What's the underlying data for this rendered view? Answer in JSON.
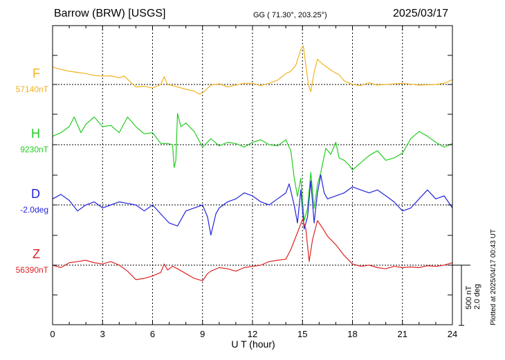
{
  "header": {
    "station": "Barrow (BRW)  [USGS]",
    "coords": "GG ( 71.30°, 203.25°)",
    "date": "2025/03/17"
  },
  "footer": {
    "plotted_note": "Plotted at 2025/04/17 00:43 UT",
    "scale_nt": "500 nT",
    "scale_deg": "2.0 deg"
  },
  "chart_data": {
    "type": "line",
    "title": "Barrow (BRW)  [USGS]",
    "xlabel": "U T (hour)",
    "ylabel": "",
    "xlim": [
      0,
      24
    ],
    "x_ticks": [
      "0",
      "3",
      "6",
      "9",
      "12",
      "15",
      "18",
      "21",
      "24"
    ],
    "grid": true,
    "scale_bar": {
      "nT": 500,
      "deg": 2.0
    },
    "series": [
      {
        "name": "F",
        "baseline_label": "57140nT",
        "color": "#f2b21c",
        "baseline": 57140,
        "unit": "nT",
        "points": [
          [
            0,
            57285
          ],
          [
            0.5,
            57265
          ],
          [
            1,
            57250
          ],
          [
            1.5,
            57240
          ],
          [
            2,
            57230
          ],
          [
            2.5,
            57215
          ],
          [
            3,
            57210
          ],
          [
            3.5,
            57212
          ],
          [
            4,
            57195
          ],
          [
            4.3,
            57210
          ],
          [
            4.6,
            57170
          ],
          [
            5,
            57120
          ],
          [
            5.5,
            57125
          ],
          [
            6,
            57110
          ],
          [
            6.5,
            57140
          ],
          [
            6.7,
            57205
          ],
          [
            6.9,
            57140
          ],
          [
            7.2,
            57130
          ],
          [
            7.5,
            57120
          ],
          [
            8,
            57100
          ],
          [
            8.5,
            57085
          ],
          [
            8.8,
            57060
          ],
          [
            9,
            57070
          ],
          [
            9.5,
            57135
          ],
          [
            10,
            57145
          ],
          [
            10.5,
            57120
          ],
          [
            11,
            57135
          ],
          [
            11.5,
            57150
          ],
          [
            12,
            57150
          ],
          [
            12.5,
            57130
          ],
          [
            13,
            57150
          ],
          [
            13.5,
            57175
          ],
          [
            14,
            57230
          ],
          [
            14.3,
            57250
          ],
          [
            14.6,
            57300
          ],
          [
            14.9,
            57430
          ],
          [
            15.05,
            57460
          ],
          [
            15.2,
            57300
          ],
          [
            15.35,
            57140
          ],
          [
            15.5,
            57080
          ],
          [
            15.7,
            57240
          ],
          [
            15.9,
            57350
          ],
          [
            16.2,
            57310
          ],
          [
            16.5,
            57280
          ],
          [
            16.8,
            57250
          ],
          [
            17.2,
            57220
          ],
          [
            17.5,
            57170
          ],
          [
            18,
            57140
          ],
          [
            18.5,
            57130
          ],
          [
            19,
            57155
          ],
          [
            19.5,
            57135
          ],
          [
            20,
            57140
          ],
          [
            21,
            57150
          ],
          [
            22,
            57135
          ],
          [
            23,
            57140
          ],
          [
            23.5,
            57150
          ],
          [
            24,
            57180
          ]
        ]
      },
      {
        "name": "H",
        "baseline_label": "9230nT",
        "color": "#22cc22",
        "baseline": 9230,
        "unit": "nT",
        "points": [
          [
            0,
            9300
          ],
          [
            0.5,
            9330
          ],
          [
            1,
            9380
          ],
          [
            1.3,
            9460
          ],
          [
            1.7,
            9330
          ],
          [
            2,
            9400
          ],
          [
            2.5,
            9460
          ],
          [
            3,
            9380
          ],
          [
            3.5,
            9390
          ],
          [
            4,
            9330
          ],
          [
            4.5,
            9460
          ],
          [
            5,
            9380
          ],
          [
            5.5,
            9320
          ],
          [
            6,
            9330
          ],
          [
            6.5,
            9240
          ],
          [
            6.9,
            9240
          ],
          [
            7.2,
            9230
          ],
          [
            7.3,
            9040
          ],
          [
            7.4,
            9100
          ],
          [
            7.5,
            9490
          ],
          [
            7.7,
            9380
          ],
          [
            8,
            9410
          ],
          [
            8.5,
            9340
          ],
          [
            9,
            9210
          ],
          [
            9.5,
            9280
          ],
          [
            10,
            9220
          ],
          [
            10.5,
            9250
          ],
          [
            11,
            9240
          ],
          [
            11.5,
            9210
          ],
          [
            12,
            9250
          ],
          [
            12.5,
            9270
          ],
          [
            13,
            9230
          ],
          [
            13.5,
            9220
          ],
          [
            14,
            9270
          ],
          [
            14.3,
            9180
          ],
          [
            14.5,
            8960
          ],
          [
            14.7,
            8800
          ],
          [
            14.9,
            8950
          ],
          [
            15.1,
            8600
          ],
          [
            15.3,
            8700
          ],
          [
            15.5,
            9000
          ],
          [
            15.7,
            8700
          ],
          [
            15.9,
            8900
          ],
          [
            16.1,
            9000
          ],
          [
            16.4,
            9200
          ],
          [
            16.7,
            9150
          ],
          [
            17,
            9250
          ],
          [
            17.2,
            9120
          ],
          [
            17.5,
            9100
          ],
          [
            17.8,
            9060
          ],
          [
            18,
            9020
          ],
          [
            18.5,
            9080
          ],
          [
            19,
            9140
          ],
          [
            19.5,
            9180
          ],
          [
            20,
            9100
          ],
          [
            20.5,
            9120
          ],
          [
            21,
            9160
          ],
          [
            21.5,
            9280
          ],
          [
            22,
            9340
          ],
          [
            22.5,
            9300
          ],
          [
            23,
            9250
          ],
          [
            23.5,
            9210
          ],
          [
            24,
            9240
          ]
        ]
      },
      {
        "name": "D",
        "baseline_label": "-2.0deg",
        "color": "#2222dd",
        "baseline": -2.0,
        "unit": "deg",
        "points": [
          [
            0,
            -1.8
          ],
          [
            0.5,
            -1.65
          ],
          [
            1,
            -1.85
          ],
          [
            1.5,
            -2.2
          ],
          [
            2,
            -2.0
          ],
          [
            2.5,
            -1.9
          ],
          [
            3,
            -2.1
          ],
          [
            3.5,
            -2.0
          ],
          [
            4,
            -1.9
          ],
          [
            4.5,
            -1.95
          ],
          [
            5,
            -2.0
          ],
          [
            5.5,
            -2.2
          ],
          [
            6,
            -2.0
          ],
          [
            6.5,
            -2.3
          ],
          [
            7,
            -2.6
          ],
          [
            7.5,
            -2.7
          ],
          [
            8,
            -2.2
          ],
          [
            8.5,
            -2.1
          ],
          [
            9,
            -2.0
          ],
          [
            9.3,
            -2.4
          ],
          [
            9.5,
            -3.0
          ],
          [
            9.8,
            -2.3
          ],
          [
            10,
            -2.1
          ],
          [
            10.5,
            -1.9
          ],
          [
            11,
            -1.8
          ],
          [
            11.5,
            -1.6
          ],
          [
            12,
            -1.7
          ],
          [
            12.5,
            -1.9
          ],
          [
            13,
            -2.0
          ],
          [
            13.5,
            -1.8
          ],
          [
            14,
            -1.6
          ],
          [
            14.2,
            -1.3
          ],
          [
            14.5,
            -2.0
          ],
          [
            14.7,
            -2.6
          ],
          [
            14.9,
            -1.5
          ],
          [
            15.1,
            -2.8
          ],
          [
            15.3,
            -2.4
          ],
          [
            15.5,
            -1.2
          ],
          [
            15.7,
            -2.6
          ],
          [
            15.9,
            -1.6
          ],
          [
            16.1,
            -1.0
          ],
          [
            16.3,
            -1.6
          ],
          [
            16.5,
            -1.8
          ],
          [
            17,
            -1.7
          ],
          [
            17.5,
            -1.6
          ],
          [
            18,
            -1.4
          ],
          [
            18.5,
            -1.5
          ],
          [
            19,
            -1.6
          ],
          [
            19.5,
            -1.5
          ],
          [
            20,
            -1.7
          ],
          [
            20.5,
            -1.9
          ],
          [
            21,
            -2.2
          ],
          [
            21.5,
            -2.1
          ],
          [
            22,
            -1.8
          ],
          [
            22.5,
            -1.5
          ],
          [
            23,
            -1.8
          ],
          [
            23.5,
            -1.7
          ],
          [
            24,
            -2.1
          ]
        ]
      },
      {
        "name": "Z",
        "baseline_label": "56390nT",
        "color": "#dd2222",
        "baseline": 56390,
        "unit": "nT",
        "points": [
          [
            0,
            56390
          ],
          [
            0.5,
            56370
          ],
          [
            1,
            56410
          ],
          [
            1.5,
            56420
          ],
          [
            2,
            56430
          ],
          [
            2.5,
            56410
          ],
          [
            3,
            56400
          ],
          [
            3.5,
            56420
          ],
          [
            4,
            56390
          ],
          [
            4.5,
            56340
          ],
          [
            5,
            56270
          ],
          [
            5.5,
            56280
          ],
          [
            6,
            56300
          ],
          [
            6.5,
            56330
          ],
          [
            6.7,
            56400
          ],
          [
            6.9,
            56350
          ],
          [
            7.2,
            56380
          ],
          [
            7.5,
            56360
          ],
          [
            8,
            56320
          ],
          [
            8.5,
            56280
          ],
          [
            9,
            56260
          ],
          [
            9.3,
            56320
          ],
          [
            9.5,
            56340
          ],
          [
            10,
            56370
          ],
          [
            10.5,
            56360
          ],
          [
            11,
            56340
          ],
          [
            11.5,
            56370
          ],
          [
            12,
            56380
          ],
          [
            12.5,
            56390
          ],
          [
            13,
            56420
          ],
          [
            13.5,
            56430
          ],
          [
            14,
            56440
          ],
          [
            14.3,
            56520
          ],
          [
            14.7,
            56660
          ],
          [
            15,
            56770
          ],
          [
            15.2,
            56690
          ],
          [
            15.4,
            56420
          ],
          [
            15.6,
            56600
          ],
          [
            15.9,
            56760
          ],
          [
            16.2,
            56700
          ],
          [
            16.5,
            56630
          ],
          [
            17,
            56560
          ],
          [
            17.5,
            56470
          ],
          [
            18,
            56400
          ],
          [
            18.5,
            56380
          ],
          [
            19,
            56390
          ],
          [
            19.5,
            56370
          ],
          [
            20,
            56360
          ],
          [
            20.5,
            56380
          ],
          [
            21,
            56370
          ],
          [
            21.5,
            56375
          ],
          [
            22,
            56370
          ],
          [
            22.5,
            56385
          ],
          [
            23,
            56380
          ],
          [
            23.5,
            56390
          ],
          [
            24,
            56410
          ]
        ]
      }
    ]
  }
}
